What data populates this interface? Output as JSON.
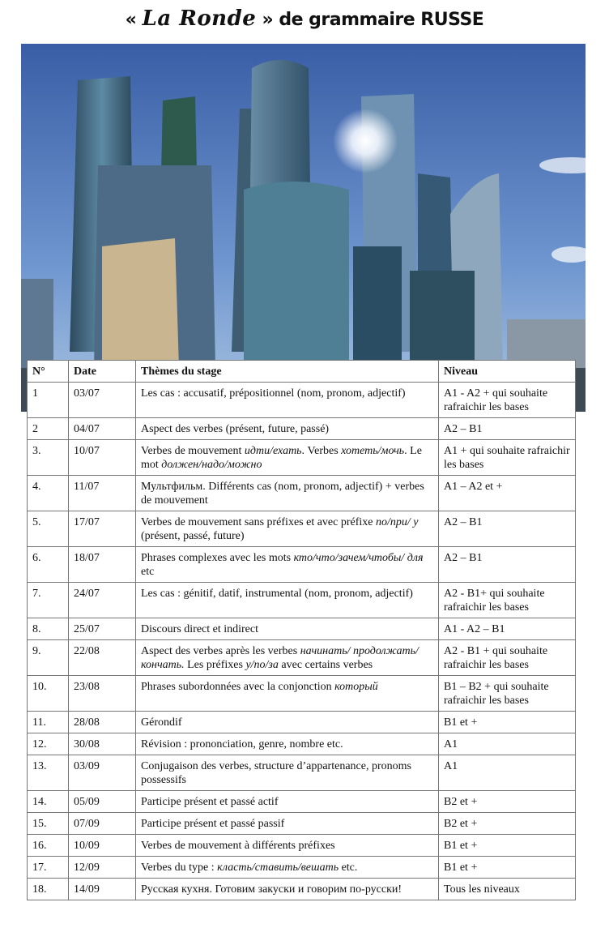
{
  "title": {
    "open_quote": "«",
    "brand": "La Ronde",
    "rest": "» de grammaire RUSSE"
  },
  "table": {
    "headers": [
      "N°",
      "Date",
      "Thèmes du stage",
      "Niveau"
    ],
    "rows": [
      {
        "n": "1",
        "date": "03/07",
        "theme": [
          {
            "t": "Les cas : accusatif, prépositionnel (nom, pronom, adjectif)"
          }
        ],
        "level": "A1 - A2 + qui souhaite rafraichir les bases"
      },
      {
        "n": "2",
        "date": "04/07",
        "theme": [
          {
            "t": "Aspect des verbes (présent, future, passé)"
          }
        ],
        "level": "A2 – B1"
      },
      {
        "n": "3.",
        "date": "10/07",
        "theme": [
          {
            "t": "Verbes de mouvement "
          },
          {
            "t": "идти/ехать",
            "i": true
          },
          {
            "t": ". Verbes "
          },
          {
            "t": "хотеть/мочь",
            "i": true
          },
          {
            "t": ". Le mot "
          },
          {
            "t": "должен/надо/можно",
            "i": true
          }
        ],
        "level": "A1 + qui souhaite rafraichir les bases"
      },
      {
        "n": "4.",
        "date": "11/07",
        "theme": [
          {
            "t": "Мультфильм. Différents cas (nom, pronom, adjectif) + verbes de mouvement"
          }
        ],
        "level": "A1 – A2 et +"
      },
      {
        "n": "5.",
        "date": "17/07",
        "theme": [
          {
            "t": "Verbes de mouvement sans préfixes et avec préfixe "
          },
          {
            "t": "по/при/ у",
            "i": true
          },
          {
            "t": " (présent, passé, future)"
          }
        ],
        "level": "A2 – B1"
      },
      {
        "n": "6.",
        "date": "18/07",
        "theme": [
          {
            "t": "Phrases complexes avec les mots "
          },
          {
            "t": "кто/что/зачем/чтобы/ для",
            "i": true
          },
          {
            "t": " etc"
          }
        ],
        "level": "A2 – B1"
      },
      {
        "n": "7.",
        "date": "24/07",
        "theme": [
          {
            "t": "Les cas : génitif,  datif, instrumental  (nom, pronom, adjectif)"
          }
        ],
        "level": "A2 - B1+ qui souhaite rafraichir les bases"
      },
      {
        "n": "8.",
        "date": "25/07",
        "theme": [
          {
            "t": "Discours direct et indirect"
          }
        ],
        "level": "A1 - A2 – B1"
      },
      {
        "n": "9.",
        "date": "22/08",
        "theme": [
          {
            "t": "Aspect des verbes après les verbes "
          },
          {
            "t": "начинать/ продолжать/кончать.",
            "i": true
          },
          {
            "t": " Les préfixes "
          },
          {
            "t": "у/по/за",
            "i": true
          },
          {
            "t": " avec certains verbes"
          }
        ],
        "level": "A2 - B1 + qui souhaite rafraichir les bases"
      },
      {
        "n": "10.",
        "date": "23/08",
        "theme": [
          {
            "t": "Phrases subordonnées avec la conjonction "
          },
          {
            "t": "который",
            "i": true
          }
        ],
        "level": "B1 – B2 + qui souhaite rafraichir les bases"
      },
      {
        "n": "11.",
        "date": "28/08",
        "theme": [
          {
            "t": "Gérondif"
          }
        ],
        "level": "B1 et +"
      },
      {
        "n": "12.",
        "date": "30/08",
        "theme": [
          {
            "t": "Révision : prononciation, genre, nombre etc."
          }
        ],
        "level": "A1"
      },
      {
        "n": "13.",
        "date": "03/09",
        "theme": [
          {
            "t": "Conjugaison des verbes, structure d’appartenance,  pronoms possessifs"
          }
        ],
        "level": "A1"
      },
      {
        "n": "14.",
        "date": "05/09",
        "theme": [
          {
            "t": "Participe présent et passé actif"
          }
        ],
        "level": "B2 et +"
      },
      {
        "n": "15.",
        "date": "07/09",
        "theme": [
          {
            "t": "Participe présent et passé passif"
          }
        ],
        "level": "B2 et +"
      },
      {
        "n": "16.",
        "date": "10/09",
        "theme": [
          {
            "t": "Verbes de mouvement à différents préfixes"
          }
        ],
        "level": "B1 et +"
      },
      {
        "n": "17.",
        "date": "12/09",
        "theme": [
          {
            "t": "Verbes du type : "
          },
          {
            "t": "класть/ставить/вешать",
            "i": true
          },
          {
            "t": " etc."
          }
        ],
        "level": "B1 et +"
      },
      {
        "n": "18.",
        "date": "14/09",
        "theme": [
          {
            "t": "Русская кухня. Готовим закуски и говорим по-русски!"
          }
        ],
        "level": "Tous les niveaux"
      }
    ]
  },
  "colors": {
    "sky_top": "#3f63a8",
    "sky_bottom": "#8fb2dc",
    "glass": "#3d6b8a"
  }
}
